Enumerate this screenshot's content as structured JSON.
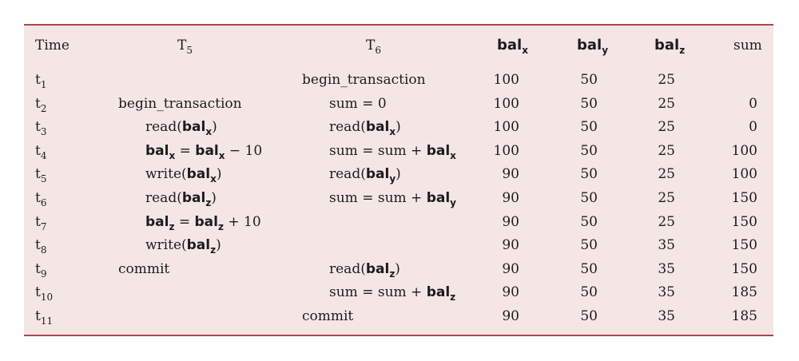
{
  "headers": {
    "time": "Time",
    "t5": {
      "base": "T",
      "sub": "5"
    },
    "t6": {
      "base": "T",
      "sub": "6"
    },
    "balx": {
      "base": "bal",
      "sub": "x"
    },
    "baly": {
      "base": "bal",
      "sub": "y"
    },
    "balz": {
      "base": "bal",
      "sub": "z"
    },
    "sum": "sum"
  },
  "rows": [
    {
      "time": "t",
      "time_sub": "1",
      "t5": [],
      "t6": [
        {
          "t": "begin_transaction"
        }
      ],
      "balx": "100",
      "baly": "50",
      "balz": "25",
      "sum": ""
    },
    {
      "time": "t",
      "time_sub": "2",
      "t5": [
        {
          "t": "begin_transaction"
        }
      ],
      "t6": [
        {
          "t": "sum = 0"
        }
      ],
      "balx": "100",
      "baly": "50",
      "balz": "25",
      "sum": "0"
    },
    {
      "time": "t",
      "time_sub": "3",
      "t5": [
        {
          "t": "read("
        },
        {
          "b": "bal",
          "s": "x"
        },
        {
          "t": ")"
        }
      ],
      "t6": [
        {
          "t": "read("
        },
        {
          "b": "bal",
          "s": "x"
        },
        {
          "t": ")"
        }
      ],
      "balx": "100",
      "baly": "50",
      "balz": "25",
      "sum": "0"
    },
    {
      "time": "t",
      "time_sub": "4",
      "t5": [
        {
          "b": "bal",
          "s": "x"
        },
        {
          "t": " = "
        },
        {
          "b": "bal",
          "s": "x"
        },
        {
          "t": " − 10"
        }
      ],
      "t6": [
        {
          "t": "sum = sum + "
        },
        {
          "b": "bal",
          "s": "x"
        }
      ],
      "balx": "100",
      "baly": "50",
      "balz": "25",
      "sum": "100"
    },
    {
      "time": "t",
      "time_sub": "5",
      "t5": [
        {
          "t": "write("
        },
        {
          "b": "bal",
          "s": "x"
        },
        {
          "t": ")"
        }
      ],
      "t6": [
        {
          "t": "read("
        },
        {
          "b": "bal",
          "s": "y"
        },
        {
          "t": ")"
        }
      ],
      "balx": "90",
      "baly": "50",
      "balz": "25",
      "sum": "100"
    },
    {
      "time": "t",
      "time_sub": "6",
      "t5": [
        {
          "t": "read("
        },
        {
          "b": "bal",
          "s": "z"
        },
        {
          "t": ")"
        }
      ],
      "t6": [
        {
          "t": "sum = sum + "
        },
        {
          "b": "bal",
          "s": "y"
        }
      ],
      "balx": "90",
      "baly": "50",
      "balz": "25",
      "sum": "150"
    },
    {
      "time": "t",
      "time_sub": "7",
      "t5": [
        {
          "b": "bal",
          "s": "z"
        },
        {
          "t": " = "
        },
        {
          "b": "bal",
          "s": "z"
        },
        {
          "t": " + 10"
        }
      ],
      "t6": [],
      "balx": "90",
      "baly": "50",
      "balz": "25",
      "sum": "150"
    },
    {
      "time": "t",
      "time_sub": "8",
      "t5": [
        {
          "t": "write("
        },
        {
          "b": "bal",
          "s": "z"
        },
        {
          "t": ")"
        }
      ],
      "t6": [],
      "balx": "90",
      "baly": "50",
      "balz": "35",
      "sum": "150"
    },
    {
      "time": "t",
      "time_sub": "9",
      "t5": [
        {
          "t": "commit"
        }
      ],
      "t6": [
        {
          "t": "read("
        },
        {
          "b": "bal",
          "s": "z"
        },
        {
          "t": ")"
        }
      ],
      "balx": "90",
      "baly": "50",
      "balz": "35",
      "sum": "150"
    },
    {
      "time": "t",
      "time_sub": "10",
      "t5": [],
      "t6": [
        {
          "t": "sum = sum + "
        },
        {
          "b": "bal",
          "s": "z"
        }
      ],
      "balx": "90",
      "baly": "50",
      "balz": "35",
      "sum": "185"
    },
    {
      "time": "t",
      "time_sub": "11",
      "t5": [],
      "t6": [
        {
          "t": "commit"
        }
      ],
      "balx": "90",
      "baly": "50",
      "balz": "35",
      "sum": "185"
    }
  ]
}
